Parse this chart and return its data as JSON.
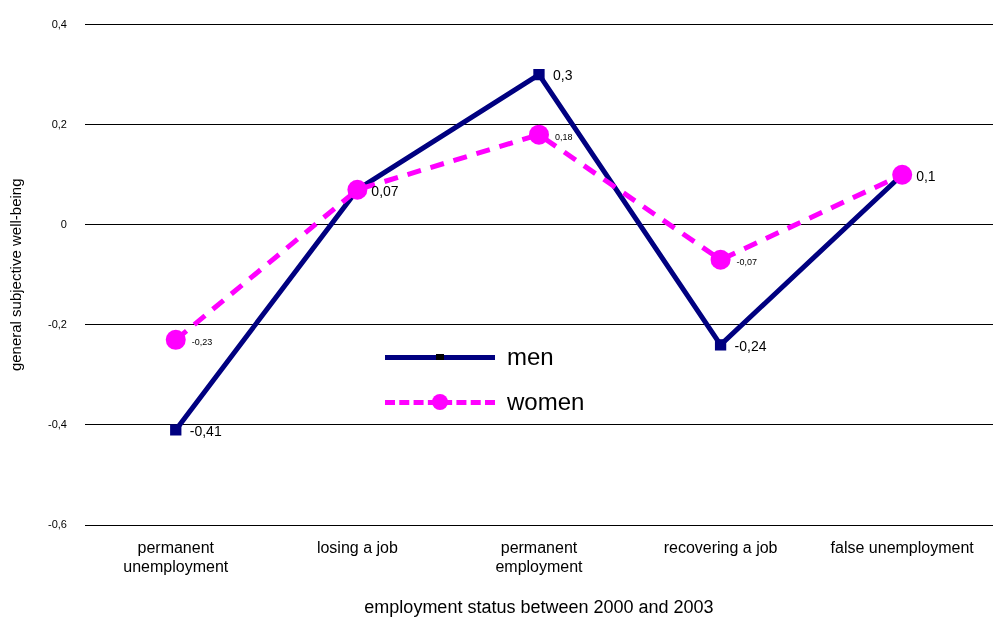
{
  "chart_data": {
    "type": "line",
    "xlabel": "employment status between 2000 and 2003",
    "ylabel": "general subjective well-being",
    "categories": [
      "permanent unemployment",
      "losing a job",
      "permanent employment",
      "recovering a job",
      "false unemployment"
    ],
    "series": [
      {
        "name": "men",
        "color": "#000080",
        "values": [
          -0.41,
          0.07,
          0.3,
          -0.24,
          0.1
        ],
        "value_labels": [
          "-0,41",
          "0,07",
          "0,3",
          "-0,24",
          "0,1"
        ],
        "marker": "square",
        "line_style": "solid"
      },
      {
        "name": "women",
        "color": "#ff00ff",
        "values": [
          -0.23,
          0.07,
          0.18,
          -0.07,
          0.1
        ],
        "value_labels": [
          "-0,23",
          null,
          "0,18",
          "-0,07",
          null
        ],
        "marker": "circle",
        "line_style": "dashed"
      }
    ],
    "ylim": [
      -0.6,
      0.4
    ],
    "yticks": [
      {
        "value": -0.6,
        "label": "-0,6"
      },
      {
        "value": -0.4,
        "label": "-0,4"
      },
      {
        "value": -0.2,
        "label": "-0,2"
      },
      {
        "value": 0,
        "label": "0"
      },
      {
        "value": 0.2,
        "label": "0,2"
      },
      {
        "value": 0.4,
        "label": "0,4"
      }
    ],
    "grid": "y",
    "legend": "bottom left"
  }
}
